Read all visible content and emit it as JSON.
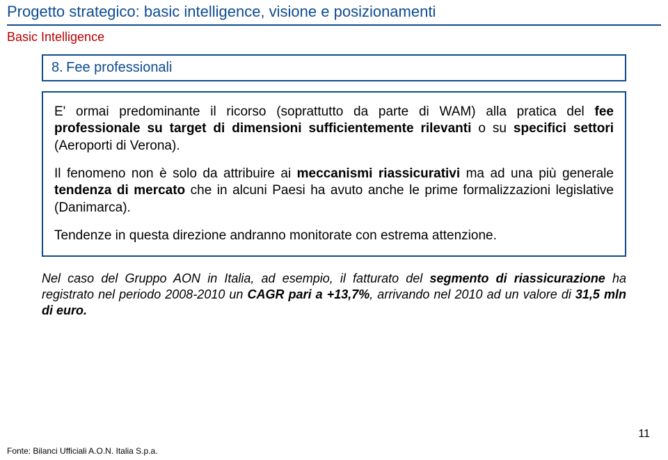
{
  "header": {
    "title": "Progetto strategico: basic intelligence, visione e posizionamenti",
    "subtitle": "Basic Intelligence"
  },
  "section": {
    "number": "8.",
    "title": "Fee professionali"
  },
  "paragraphs": {
    "p1_a": "E' ormai predominante il ricorso (soprattutto da parte di WAM) alla pratica del ",
    "p1_b1": "fee professionale su target di dimensioni sufficientemente rilevanti",
    "p1_c": " o su ",
    "p1_b2": "specifici settori",
    "p1_d": " (Aeroporti di Verona).",
    "p2_a": "Il fenomeno non è solo da attribuire ai ",
    "p2_b1": "meccanismi riassicurativi",
    "p2_c": " ma ad una più generale ",
    "p2_b2": "tendenza di mercato",
    "p2_d": " che in alcuni Paesi ha avuto anche le prime formalizzazioni legislative (Danimarca).",
    "p3": "Tendenze in questa direzione andranno monitorate con estrema attenzione."
  },
  "footnote": {
    "a": "Nel caso del Gruppo AON in Italia, ad esempio, il fatturato del ",
    "b1": "segmento di riassicurazione",
    "c": " ha registrato nel periodo 2008-2010 un ",
    "b2": "CAGR pari a +13,7%",
    "d": ", arrivando nel 2010 ad un valore di ",
    "b3": "31,5 mln di euro."
  },
  "page_number": "11",
  "source": "Fonte: Bilanci Ufficiali A.O.N. Italia S.p.a."
}
